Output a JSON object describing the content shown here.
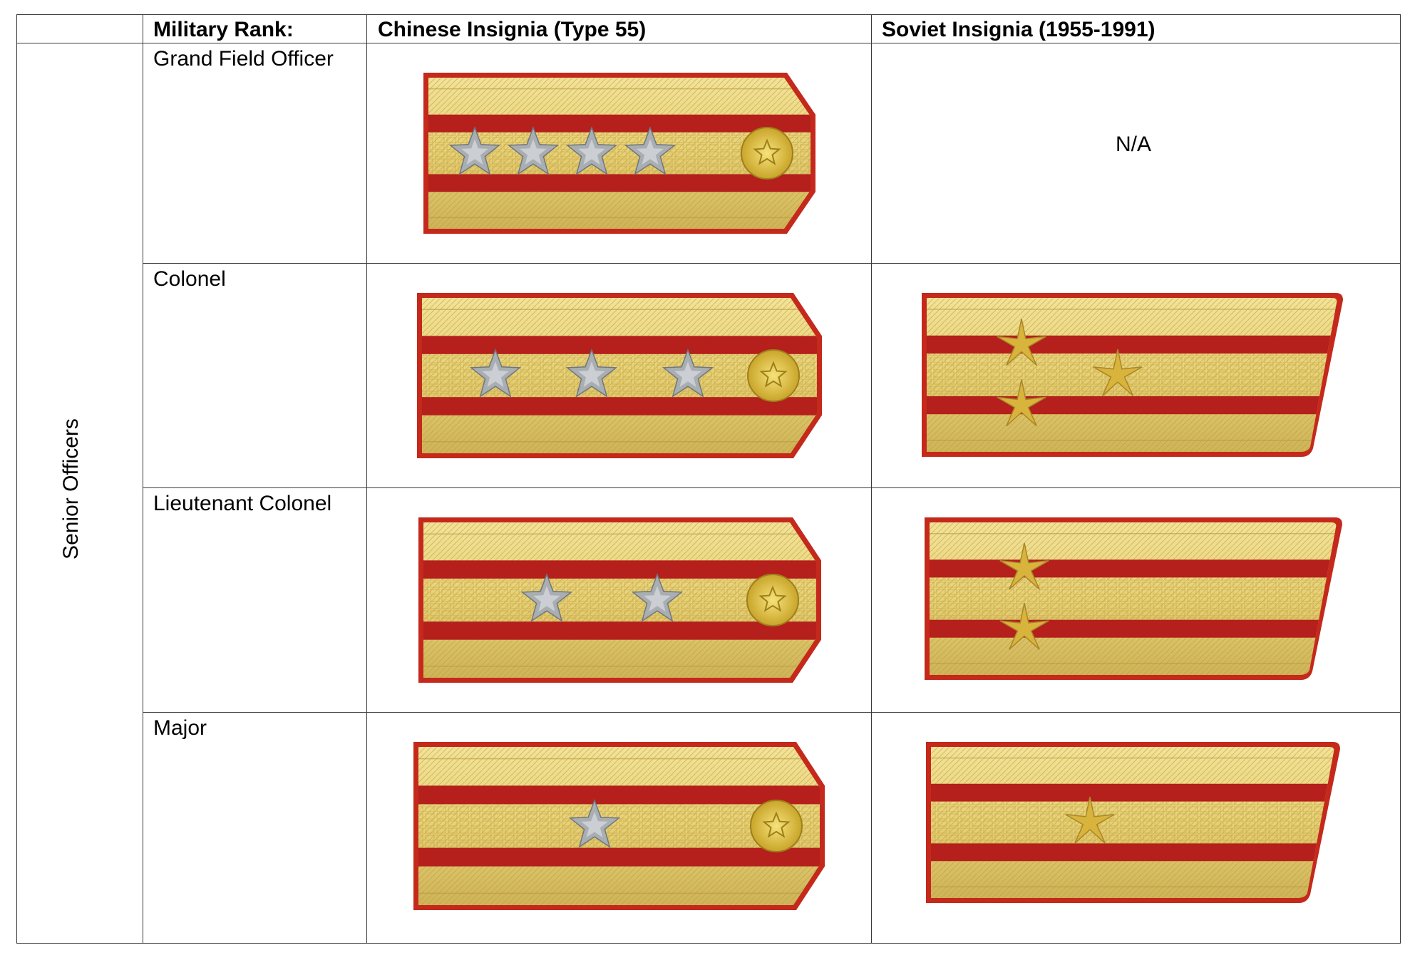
{
  "table": {
    "headers": {
      "group": "",
      "rank": "Military Rank:",
      "chinese": "Chinese Insignia (Type 55)",
      "soviet": "Soviet Insignia (1955-1991)"
    },
    "group_label": "Senior Officers",
    "rows": [
      {
        "rank": "Grand Field Officer",
        "chinese": {
          "stars": 4,
          "emblem": true
        },
        "soviet": {
          "text": "N/A"
        }
      },
      {
        "rank": "Colonel",
        "chinese": {
          "stars": 3,
          "emblem": true
        },
        "soviet": {
          "stars": 3
        }
      },
      {
        "rank": "Lieutenant Colonel",
        "chinese": {
          "stars": 2,
          "emblem": true
        },
        "soviet": {
          "stars": 2
        }
      },
      {
        "rank": "Major",
        "chinese": {
          "stars": 1,
          "emblem": true
        },
        "soviet": {
          "stars": 1
        }
      }
    ]
  },
  "colors": {
    "border": "#c4291c",
    "gold": "#e7d176",
    "red_stripe": "#b51f1c",
    "silver_star": "#a9aeb3",
    "gold_star": "#d9b43c",
    "emblem": "#dcc23e"
  }
}
